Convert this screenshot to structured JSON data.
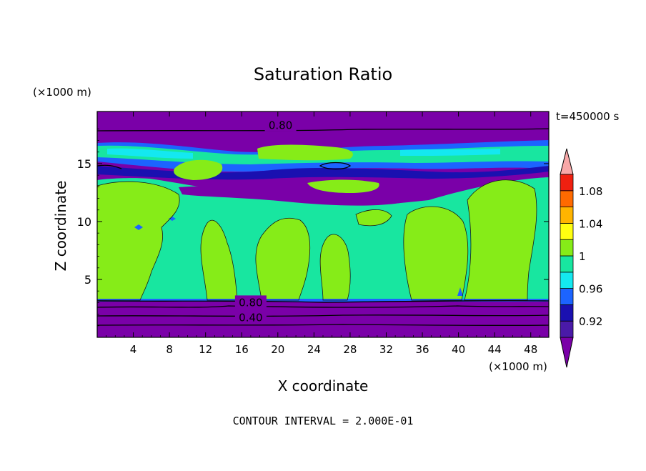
{
  "chart_data": {
    "type": "contour",
    "title": "Saturation Ratio",
    "xlabel": "X coordinate",
    "ylabel": "Z coordinate",
    "x_units": "(×1000 m)",
    "y_units": "(×1000 m)",
    "x_ticks": [
      4,
      8,
      12,
      16,
      20,
      24,
      28,
      32,
      36,
      40,
      44,
      48
    ],
    "y_ticks": [
      5,
      10,
      15
    ],
    "xlim": [
      0,
      50
    ],
    "ylim": [
      0,
      19.5
    ],
    "time_label": "t=450000 s",
    "footer": "CONTOUR INTERVAL = 2.000E-01",
    "colorbar": {
      "labels": [
        "0.92",
        "0.96",
        "1",
        "1.04",
        "1.08"
      ],
      "bins": [
        {
          "from": null,
          "to": 0.9,
          "color": "#7a00a8"
        },
        {
          "from": 0.9,
          "to": 0.92,
          "color": "#4a1aa8"
        },
        {
          "from": 0.92,
          "to": 0.94,
          "color": "#1a10b0"
        },
        {
          "from": 0.94,
          "to": 0.96,
          "color": "#1c64ff"
        },
        {
          "from": 0.96,
          "to": 0.98,
          "color": "#14e8f0"
        },
        {
          "from": 0.98,
          "to": 1.0,
          "color": "#18e6a0"
        },
        {
          "from": 1.0,
          "to": 1.02,
          "color": "#86ec18"
        },
        {
          "from": 1.02,
          "to": 1.04,
          "color": "#ffff10"
        },
        {
          "from": 1.04,
          "to": 1.06,
          "color": "#ffb400"
        },
        {
          "from": 1.06,
          "to": 1.08,
          "color": "#ff6a00"
        },
        {
          "from": 1.08,
          "to": 1.1,
          "color": "#f02010"
        },
        {
          "from": 1.1,
          "to": null,
          "color": "#f8a8a8"
        }
      ]
    },
    "contour_labels": [
      {
        "text": "0.80",
        "x": 20.3,
        "z": 18.3
      },
      {
        "text": "0.80",
        "x": 17.0,
        "z": 3.0
      },
      {
        "text": "0.40",
        "x": 17.0,
        "z": 1.7
      }
    ]
  }
}
